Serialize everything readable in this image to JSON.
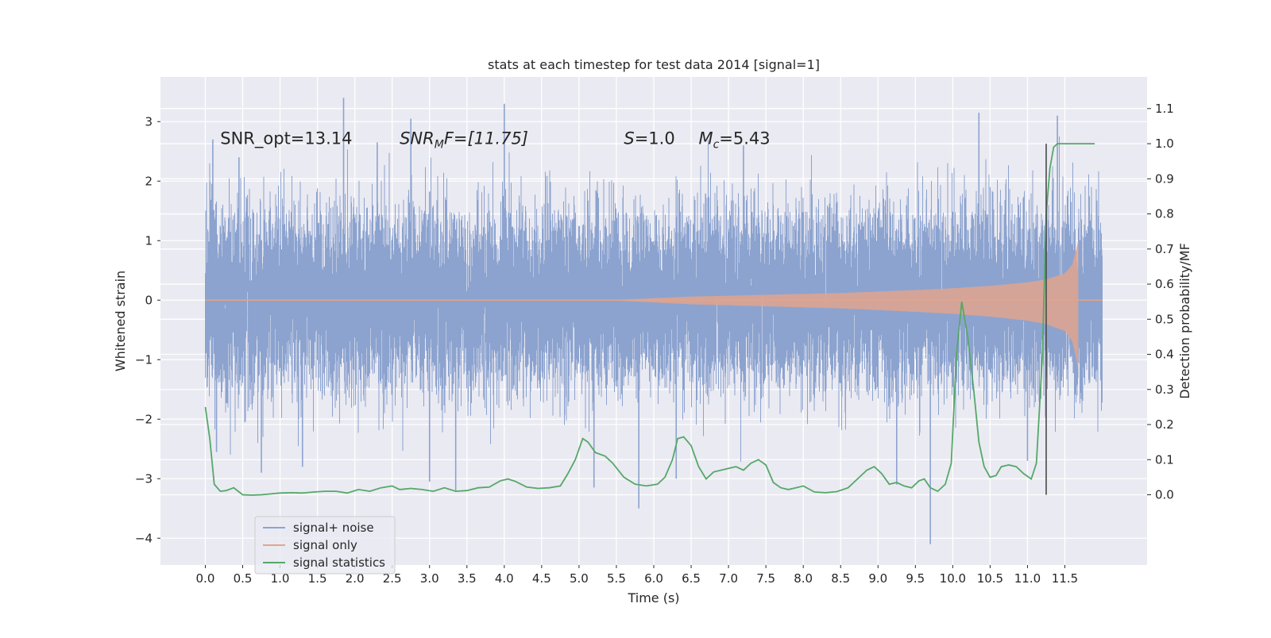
{
  "chart_data": {
    "type": "line",
    "title": "stats at each timestep for test data 2014 [signal=1]",
    "xlabel": "Time (s)",
    "ylabel_left": "Whitened strain",
    "ylabel_right": "Detection probability/MF",
    "xlim": [
      -0.6,
      12.6
    ],
    "ylim_left": [
      -4.45,
      3.75
    ],
    "ylim_right": [
      -0.2,
      1.19
    ],
    "x_ticks": [
      0.0,
      0.5,
      1.0,
      1.5,
      2.0,
      2.5,
      3.0,
      3.5,
      4.0,
      4.5,
      5.0,
      5.5,
      6.0,
      6.5,
      7.0,
      7.5,
      8.0,
      8.5,
      9.0,
      9.5,
      10.0,
      10.5,
      11.0,
      11.5
    ],
    "x_tick_labels": [
      "0.0",
      "0.5",
      "1.0",
      "1.5",
      "2.0",
      "2.5",
      "3.0",
      "3.5",
      "4.0",
      "4.5",
      "5.0",
      "5.5",
      "6.0",
      "6.5",
      "7.0",
      "7.5",
      "8.0",
      "8.5",
      "9.0",
      "9.5",
      "10.0",
      "10.5",
      "11.0",
      "11.5"
    ],
    "y_left_ticks": [
      -4,
      -3,
      -2,
      -1,
      0,
      1,
      2,
      3
    ],
    "y_left_tick_labels": [
      "−4",
      "−3",
      "−2",
      "−1",
      "0",
      "1",
      "2",
      "3"
    ],
    "y_right_ticks": [
      0.0,
      0.1,
      0.2,
      0.3,
      0.4,
      0.5,
      0.6,
      0.7,
      0.8,
      0.9,
      1.0,
      1.1
    ],
    "y_right_tick_labels": [
      "0.0",
      "0.1",
      "0.2",
      "0.3",
      "0.4",
      "0.5",
      "0.6",
      "0.7",
      "0.8",
      "0.9",
      "1.0",
      "1.1"
    ],
    "grid": true,
    "legend_placement": "lower-left",
    "annotations": [
      {
        "label": "SNR_opt=13.14",
        "x": 0.2,
        "y": 2.72,
        "italic": false
      },
      {
        "label": "SNR_MF=[11.75]",
        "x": 2.6,
        "y": 2.72,
        "italic": true
      },
      {
        "label": "S=1.0",
        "x": 5.6,
        "y": 2.72,
        "italic": true
      },
      {
        "label": "M_c=5.43",
        "x": 6.6,
        "y": 2.72,
        "italic": true
      }
    ],
    "annotation_text": {
      "snr_opt": "SNR_opt=13.14",
      "snr_mf_sym": "SNR",
      "snr_mf_sub": "M",
      "snr_mf_rest": "F=[11.75]",
      "s_sym": "S",
      "s_rest": "=1.0",
      "mc_sym": "M",
      "mc_sub": "c",
      "mc_rest": "=5.43"
    },
    "detection_marker": {
      "x": 11.25,
      "y_right": [
        0.0,
        1.0
      ],
      "color": "#4a4a4a"
    },
    "series": [
      {
        "name": "signal+ noise",
        "color": "#8ca3cf",
        "axis": "left",
        "kind": "noise",
        "x_range": [
          0.0,
          12.0
        ],
        "envelope_typical": [
          -1.45,
          1.45
        ],
        "spikes": [
          {
            "x": 0.1,
            "y": 2.7
          },
          {
            "x": 0.15,
            "y": -2.55
          },
          {
            "x": 0.45,
            "y": 2.4
          },
          {
            "x": 0.75,
            "y": -2.9
          },
          {
            "x": 1.3,
            "y": -2.8
          },
          {
            "x": 1.85,
            "y": 3.4
          },
          {
            "x": 2.3,
            "y": 2.65
          },
          {
            "x": 2.75,
            "y": 3.05
          },
          {
            "x": 3.0,
            "y": -3.05
          },
          {
            "x": 3.35,
            "y": -3.2
          },
          {
            "x": 4.0,
            "y": 3.3
          },
          {
            "x": 5.2,
            "y": -3.15
          },
          {
            "x": 5.8,
            "y": -3.5
          },
          {
            "x": 6.3,
            "y": -3.0
          },
          {
            "x": 7.2,
            "y": 2.6
          },
          {
            "x": 9.25,
            "y": -3.1
          },
          {
            "x": 9.7,
            "y": -4.1
          },
          {
            "x": 10.35,
            "y": 3.15
          },
          {
            "x": 11.0,
            "y": -2.7
          },
          {
            "x": 11.4,
            "y": 3.1
          }
        ]
      },
      {
        "name": "signal only",
        "color": "#e0a58e",
        "axis": "left",
        "kind": "chirp",
        "x_range": [
          0.0,
          12.0
        ],
        "envelope_t": [
          0.0,
          5.5,
          6.5,
          7.5,
          8.5,
          9.5,
          10.0,
          10.5,
          11.0,
          11.25,
          11.5,
          11.6,
          11.68
        ],
        "envelope_amp": [
          0.002,
          0.006,
          0.06,
          0.09,
          0.12,
          0.17,
          0.2,
          0.24,
          0.3,
          0.35,
          0.45,
          0.6,
          1.0
        ],
        "merger_time": 11.68
      },
      {
        "name": "signal statistics",
        "color": "#55a868",
        "axis": "right",
        "kind": "line",
        "x": [
          0.0,
          0.06,
          0.12,
          0.2,
          0.28,
          0.38,
          0.5,
          0.62,
          0.75,
          0.85,
          1.0,
          1.15,
          1.3,
          1.45,
          1.6,
          1.75,
          1.9,
          2.05,
          2.2,
          2.35,
          2.5,
          2.6,
          2.75,
          2.9,
          3.05,
          3.2,
          3.35,
          3.5,
          3.65,
          3.8,
          3.95,
          4.05,
          4.15,
          4.3,
          4.45,
          4.6,
          4.75,
          4.85,
          4.95,
          5.05,
          5.12,
          5.22,
          5.35,
          5.45,
          5.6,
          5.75,
          5.9,
          6.05,
          6.15,
          6.25,
          6.32,
          6.4,
          6.5,
          6.6,
          6.7,
          6.8,
          6.9,
          7.0,
          7.1,
          7.2,
          7.3,
          7.4,
          7.5,
          7.6,
          7.7,
          7.8,
          7.9,
          8.0,
          8.15,
          8.3,
          8.45,
          8.6,
          8.75,
          8.85,
          8.95,
          9.05,
          9.15,
          9.25,
          9.35,
          9.45,
          9.55,
          9.62,
          9.7,
          9.8,
          9.9,
          9.98,
          10.05,
          10.12,
          10.2,
          10.28,
          10.35,
          10.42,
          10.5,
          10.58,
          10.65,
          10.75,
          10.85,
          10.95,
          11.05,
          11.12,
          11.2,
          11.25,
          11.3,
          11.35,
          11.4,
          11.45,
          11.55,
          11.7,
          11.85,
          11.9
        ],
        "y": [
          0.25,
          0.16,
          0.03,
          0.01,
          0.012,
          0.02,
          0.0,
          -0.001,
          0.0,
          0.002,
          0.005,
          0.006,
          0.005,
          0.008,
          0.01,
          0.01,
          0.005,
          0.015,
          0.01,
          0.02,
          0.025,
          0.015,
          0.018,
          0.015,
          0.01,
          0.02,
          0.01,
          0.012,
          0.02,
          0.022,
          0.04,
          0.045,
          0.038,
          0.022,
          0.018,
          0.02,
          0.025,
          0.06,
          0.1,
          0.16,
          0.15,
          0.12,
          0.11,
          0.09,
          0.05,
          0.03,
          0.025,
          0.03,
          0.05,
          0.1,
          0.16,
          0.165,
          0.14,
          0.08,
          0.045,
          0.065,
          0.07,
          0.075,
          0.08,
          0.07,
          0.09,
          0.1,
          0.085,
          0.035,
          0.02,
          0.015,
          0.02,
          0.025,
          0.008,
          0.006,
          0.009,
          0.02,
          0.05,
          0.07,
          0.08,
          0.06,
          0.03,
          0.035,
          0.025,
          0.02,
          0.04,
          0.045,
          0.02,
          0.01,
          0.03,
          0.09,
          0.4,
          0.55,
          0.45,
          0.3,
          0.15,
          0.08,
          0.05,
          0.055,
          0.08,
          0.085,
          0.08,
          0.06,
          0.045,
          0.09,
          0.4,
          0.8,
          0.93,
          0.99,
          1.0,
          1.0,
          1.0,
          1.0,
          1.0,
          1.0
        ]
      }
    ]
  }
}
